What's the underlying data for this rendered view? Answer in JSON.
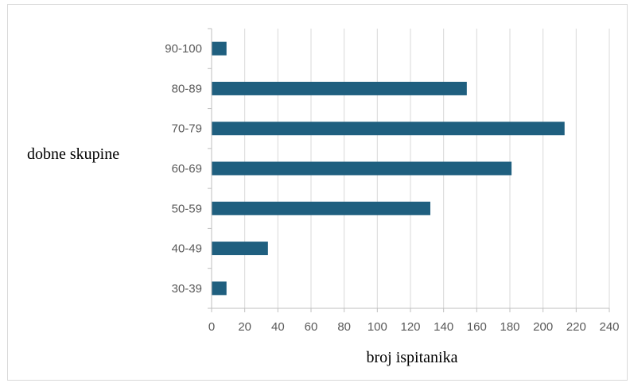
{
  "chart_data": {
    "type": "bar",
    "orientation": "horizontal",
    "categories": [
      "30-39",
      "40-49",
      "50-59",
      "60-69",
      "70-79",
      "80-89",
      "90-100"
    ],
    "values": [
      9,
      34,
      132,
      181,
      213,
      154,
      9
    ],
    "xlabel": "broj ispitanika",
    "ylabel": "dobne skupine",
    "xlim": [
      0,
      240
    ],
    "x_ticks": [
      0,
      20,
      40,
      60,
      80,
      100,
      120,
      140,
      160,
      180,
      200,
      220,
      240
    ],
    "grid": "vertical",
    "legend": "none",
    "colors": {
      "bar": "#1f5f7f",
      "grid": "#d9d9d9",
      "axis": "#bfbfbf",
      "tick_text": "#595959"
    }
  }
}
